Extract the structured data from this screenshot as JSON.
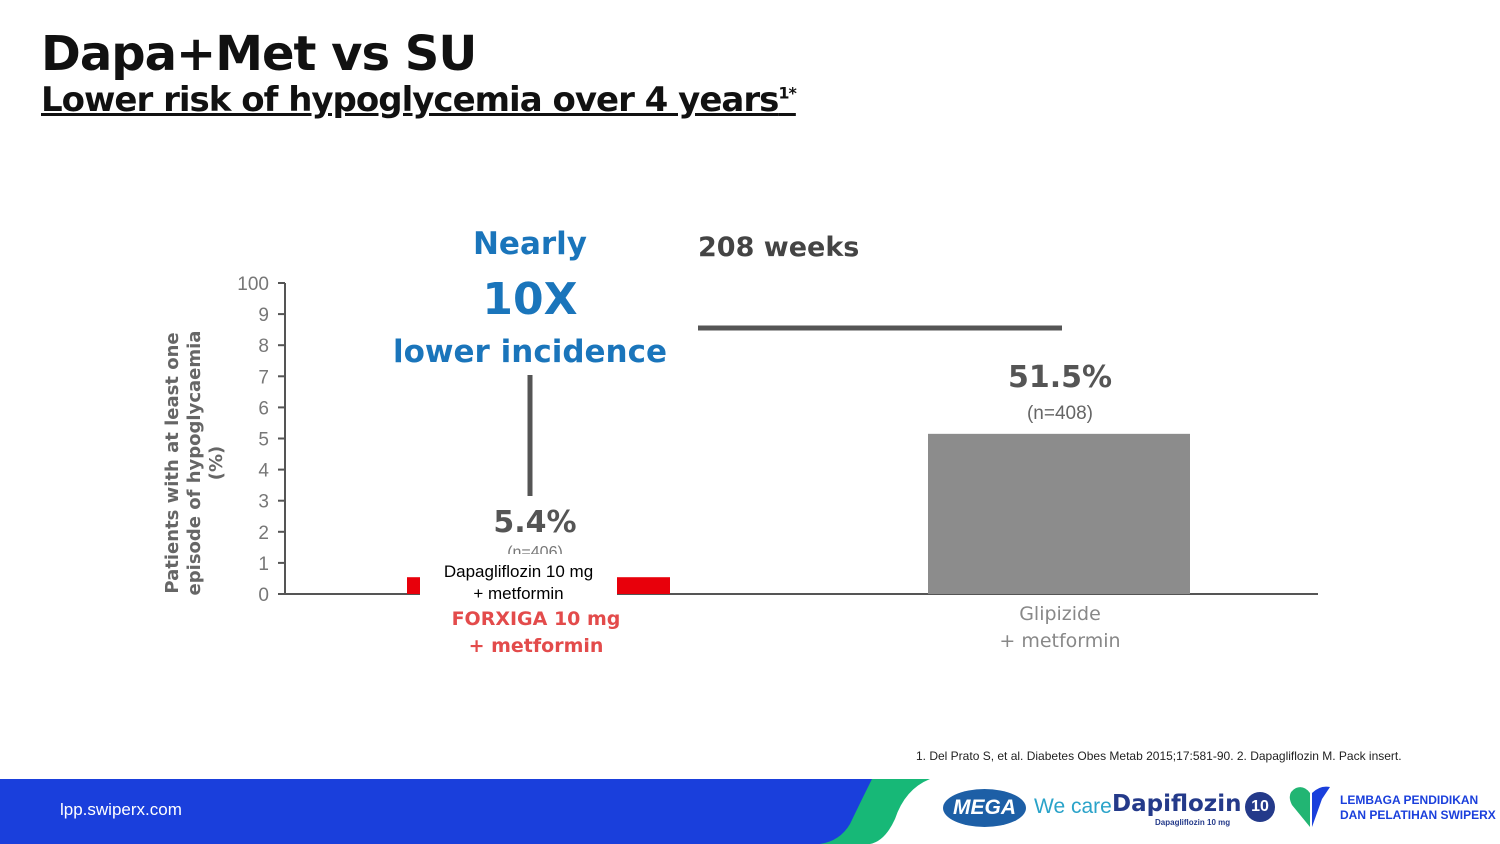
{
  "header": {
    "title": "Dapa+Met vs SU",
    "subtitle": "Lower risk of hypoglycemia over 4 years",
    "subtitle_sup": "1*"
  },
  "callout": {
    "line1": "Nearly",
    "line2": "10X",
    "line3": "lower incidence",
    "duration": "208 weeks"
  },
  "overlay_label": {
    "line1": "Dapagliflozin 10 mg",
    "line2": "+ metformin"
  },
  "chart_data": {
    "type": "bar",
    "ylabel": "Patients with at least one episode of hypoglycaemia (%)",
    "ylim": [
      0,
      100
    ],
    "yticks": [
      "100",
      "9",
      "8",
      "7",
      "6",
      "5",
      "4",
      "3",
      "2",
      "1",
      "0"
    ],
    "categories": [
      "FORXIGA 10 mg + metformin",
      "Glipizide + metformin"
    ],
    "category_lines": [
      [
        "FORXIGA 10 mg",
        "+ metformin"
      ],
      [
        "Glipizide",
        "+ metformin"
      ]
    ],
    "values": [
      5.4,
      51.5
    ],
    "value_labels": [
      "5.4%",
      "51.5%"
    ],
    "n_labels": [
      "(n=406)",
      "(n=408)"
    ],
    "colors": [
      "#e8000b",
      "#8c8c8c"
    ]
  },
  "footer": {
    "url": "lpp.swiperx.com",
    "reference": "1. Del Prato S, et al. Diabetes Obes Metab 2015;17:581-90. 2. Dapagliflozin M. Pack insert.",
    "logo_mega": "MEGA",
    "tagline": "We care",
    "brand": "Dapiflozin",
    "brand_sub": "Dapagliflozin 10 mg",
    "brand_badge": "10",
    "org_line1": "LEMBAGA PENDIDIKAN",
    "org_line2": "DAN PELATIHAN SWIPERX"
  }
}
